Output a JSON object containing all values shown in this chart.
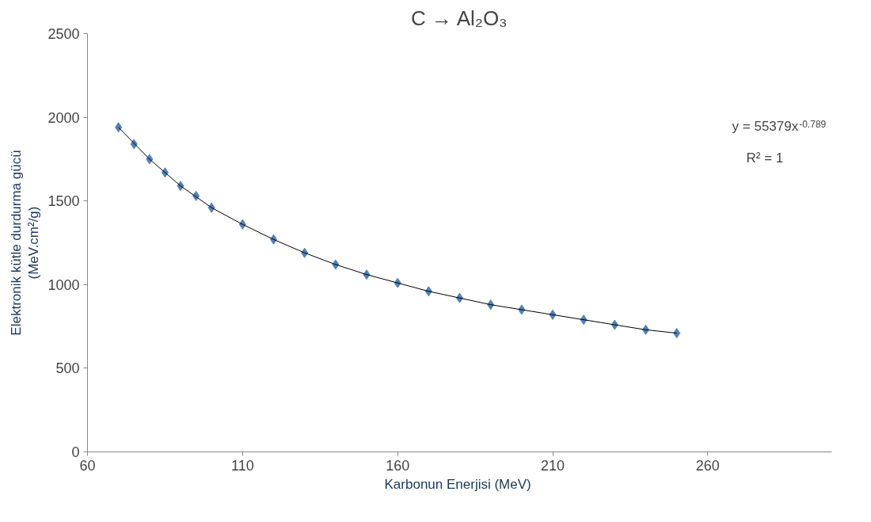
{
  "chart_data": {
    "type": "scatter",
    "title": "C → Al₂O₃",
    "xlabel": "Karbonun Enerjisi  (MeV)",
    "ylabel": "Elektronik kütle durdurma gücü\n(MeV.cm²/g)",
    "xlim": [
      60,
      300
    ],
    "xticks": [
      60,
      110,
      160,
      210,
      260
    ],
    "ylim": [
      0,
      2500
    ],
    "yticks": [
      0,
      500,
      1000,
      1500,
      2000,
      2500
    ],
    "grid": false,
    "series": [
      {
        "color": "#4f81bd",
        "marker": "diamond",
        "x": [
          70,
          75,
          80,
          85,
          90,
          95,
          100,
          110,
          120,
          130,
          140,
          150,
          160,
          170,
          180,
          190,
          200,
          210,
          220,
          230,
          240,
          250
        ],
        "values": [
          1940,
          1840,
          1750,
          1670,
          1590,
          1530,
          1460,
          1360,
          1270,
          1190,
          1120,
          1060,
          1010,
          960,
          920,
          880,
          850,
          820,
          790,
          760,
          730,
          710
        ]
      },
      {
        "type": "line",
        "color": "#000000",
        "marker": "none",
        "line_style": "solid",
        "x": [
          70,
          80,
          90,
          100,
          110,
          120,
          130,
          140,
          150,
          160,
          170,
          180,
          190,
          200,
          210,
          220,
          230,
          240,
          250
        ],
        "values": [
          1940,
          1750,
          1590,
          1460,
          1360,
          1270,
          1190,
          1120,
          1060,
          1010,
          960,
          920,
          880,
          850,
          820,
          790,
          760,
          730,
          710
        ]
      }
    ],
    "annotations": [
      "y = 55379x$^{-0.789}$",
      "R² = 1"
    ]
  }
}
